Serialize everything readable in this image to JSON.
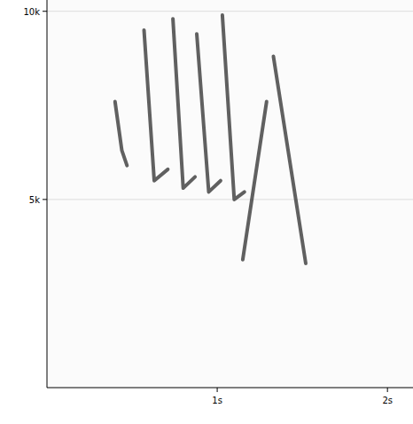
{
  "chart_data": {
    "type": "line",
    "xlim": [
      0,
      2.15
    ],
    "ylim": [
      0,
      10300
    ],
    "xticks": [
      {
        "value": 1,
        "label": "1s"
      },
      {
        "value": 2,
        "label": "2s"
      }
    ],
    "yticks": [
      {
        "value": 5000,
        "label": "5k"
      },
      {
        "value": 10000,
        "label": "10k"
      }
    ],
    "grid": true,
    "color": "#3a3a3a",
    "series": [
      {
        "x": [
          0.4,
          0.44,
          0.47
        ],
        "values": [
          7600,
          6300,
          5900
        ]
      },
      {
        "x": [
          0.57,
          0.63,
          0.71
        ],
        "values": [
          9500,
          5500,
          5800
        ]
      },
      {
        "x": [
          0.74,
          0.8,
          0.87
        ],
        "values": [
          9800,
          5300,
          5600
        ]
      },
      {
        "x": [
          0.88,
          0.95,
          1.02
        ],
        "values": [
          9400,
          5200,
          5500
        ]
      },
      {
        "x": [
          1.03,
          1.1,
          1.16
        ],
        "values": [
          9900,
          5000,
          5200
        ]
      },
      {
        "x": [
          1.15,
          1.29
        ],
        "values": [
          3400,
          7600
        ]
      },
      {
        "x": [
          1.33,
          1.52
        ],
        "values": [
          8800,
          3300
        ]
      }
    ]
  }
}
